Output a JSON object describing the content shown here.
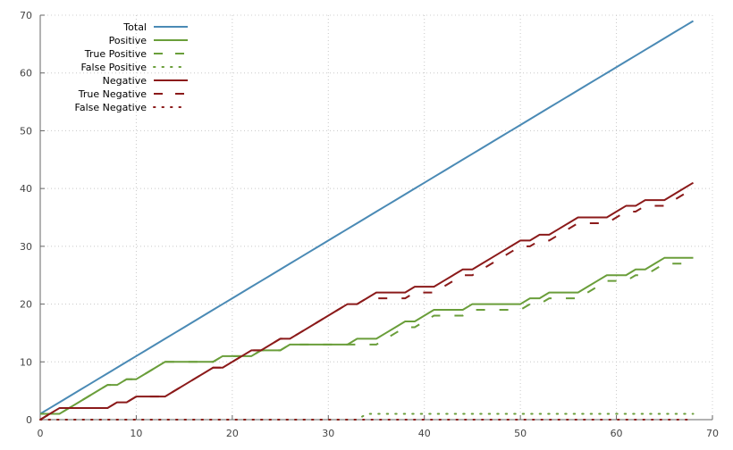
{
  "chart_data": {
    "type": "line",
    "xlim": [
      0,
      70
    ],
    "ylim": [
      0,
      70
    ],
    "x_ticks": [
      0,
      10,
      20,
      30,
      40,
      50,
      60,
      70
    ],
    "y_ticks": [
      0,
      10,
      20,
      30,
      40,
      50,
      60,
      70
    ],
    "grid": true,
    "legend_position": "top-left",
    "x": [
      0,
      1,
      2,
      3,
      4,
      5,
      6,
      7,
      8,
      9,
      10,
      11,
      12,
      13,
      14,
      15,
      16,
      17,
      18,
      19,
      20,
      21,
      22,
      23,
      24,
      25,
      26,
      27,
      28,
      29,
      30,
      31,
      32,
      33,
      34,
      35,
      36,
      37,
      38,
      39,
      40,
      41,
      42,
      43,
      44,
      45,
      46,
      47,
      48,
      49,
      50,
      51,
      52,
      53,
      54,
      55,
      56,
      57,
      58,
      59,
      60,
      61,
      62,
      63,
      64,
      65,
      66,
      67,
      68
    ],
    "series": [
      {
        "name": "Total",
        "color": "#4a8ab5",
        "style": "solid",
        "values": [
          1,
          2,
          3,
          4,
          5,
          6,
          7,
          8,
          9,
          10,
          11,
          12,
          13,
          14,
          15,
          16,
          17,
          18,
          19,
          20,
          21,
          22,
          23,
          24,
          25,
          26,
          27,
          28,
          29,
          30,
          31,
          32,
          33,
          34,
          35,
          36,
          37,
          38,
          39,
          40,
          41,
          42,
          43,
          44,
          45,
          46,
          47,
          48,
          49,
          50,
          51,
          52,
          53,
          54,
          55,
          56,
          57,
          58,
          59,
          60,
          61,
          62,
          63,
          64,
          65,
          66,
          67,
          68,
          69
        ]
      },
      {
        "name": "Positive",
        "color": "#6a9e3a",
        "style": "solid",
        "values": [
          1,
          1,
          1,
          2,
          3,
          4,
          5,
          6,
          6,
          7,
          7,
          8,
          9,
          10,
          10,
          10,
          10,
          10,
          10,
          11,
          11,
          11,
          11,
          12,
          12,
          12,
          13,
          13,
          13,
          13,
          13,
          13,
          13,
          14,
          14,
          14,
          15,
          16,
          17,
          17,
          18,
          19,
          19,
          19,
          19,
          20,
          20,
          20,
          20,
          20,
          20,
          21,
          21,
          22,
          22,
          22,
          22,
          23,
          24,
          25,
          25,
          25,
          26,
          26,
          27,
          28,
          28,
          28,
          28
        ]
      },
      {
        "name": "True Positive",
        "color": "#6a9e3a",
        "style": "dashed",
        "values": [
          1,
          1,
          1,
          2,
          3,
          4,
          5,
          6,
          6,
          7,
          7,
          8,
          9,
          10,
          10,
          10,
          10,
          10,
          10,
          11,
          11,
          11,
          11,
          12,
          12,
          12,
          13,
          13,
          13,
          13,
          13,
          13,
          13,
          13,
          13,
          13,
          14,
          15,
          16,
          16,
          17,
          18,
          18,
          18,
          18,
          19,
          19,
          19,
          19,
          19,
          19,
          20,
          20,
          21,
          21,
          21,
          21,
          22,
          23,
          24,
          24,
          24,
          25,
          25,
          26,
          27,
          27,
          27,
          27
        ]
      },
      {
        "name": "False Positive",
        "color": "#6a9e3a",
        "style": "dotted",
        "values": [
          0,
          0,
          0,
          0,
          0,
          0,
          0,
          0,
          0,
          0,
          0,
          0,
          0,
          0,
          0,
          0,
          0,
          0,
          0,
          0,
          0,
          0,
          0,
          0,
          0,
          0,
          0,
          0,
          0,
          0,
          0,
          0,
          0,
          0,
          1,
          1,
          1,
          1,
          1,
          1,
          1,
          1,
          1,
          1,
          1,
          1,
          1,
          1,
          1,
          1,
          1,
          1,
          1,
          1,
          1,
          1,
          1,
          1,
          1,
          1,
          1,
          1,
          1,
          1,
          1,
          1,
          1,
          1,
          1
        ]
      },
      {
        "name": "Negative",
        "color": "#8b1a1a",
        "style": "solid",
        "values": [
          0,
          1,
          2,
          2,
          2,
          2,
          2,
          2,
          3,
          3,
          4,
          4,
          4,
          4,
          5,
          6,
          7,
          8,
          9,
          9,
          10,
          11,
          12,
          12,
          13,
          14,
          14,
          15,
          16,
          17,
          18,
          19,
          20,
          20,
          21,
          22,
          22,
          22,
          22,
          23,
          23,
          23,
          24,
          25,
          26,
          26,
          27,
          28,
          29,
          30,
          31,
          31,
          32,
          32,
          33,
          34,
          35,
          35,
          35,
          35,
          36,
          37,
          37,
          38,
          38,
          38,
          39,
          40,
          41
        ]
      },
      {
        "name": "True Negative",
        "color": "#8b1a1a",
        "style": "dashed",
        "values": [
          0,
          1,
          2,
          2,
          2,
          2,
          2,
          2,
          3,
          3,
          4,
          4,
          4,
          4,
          5,
          6,
          7,
          8,
          9,
          9,
          10,
          11,
          12,
          12,
          13,
          14,
          14,
          15,
          16,
          17,
          18,
          19,
          20,
          20,
          21,
          21,
          21,
          21,
          21,
          22,
          22,
          22,
          23,
          24,
          25,
          25,
          26,
          27,
          28,
          29,
          30,
          30,
          31,
          31,
          32,
          33,
          34,
          34,
          34,
          34,
          35,
          36,
          36,
          37,
          37,
          37,
          38,
          39,
          40
        ]
      },
      {
        "name": "False Negative",
        "color": "#8b1a1a",
        "style": "dotted",
        "values": [
          0,
          0,
          0,
          0,
          0,
          0,
          0,
          0,
          0,
          0,
          0,
          0,
          0,
          0,
          0,
          0,
          0,
          0,
          0,
          0,
          0,
          0,
          0,
          0,
          0,
          0,
          0,
          0,
          0,
          0,
          0,
          0,
          0,
          0,
          0,
          0,
          0,
          0,
          0,
          0,
          0,
          0,
          0,
          0,
          0,
          0,
          0,
          0,
          0,
          0,
          0,
          0,
          0,
          0,
          0,
          0,
          0,
          0,
          0,
          0,
          0,
          0,
          0,
          0,
          0,
          0,
          0,
          0,
          0
        ]
      }
    ]
  }
}
